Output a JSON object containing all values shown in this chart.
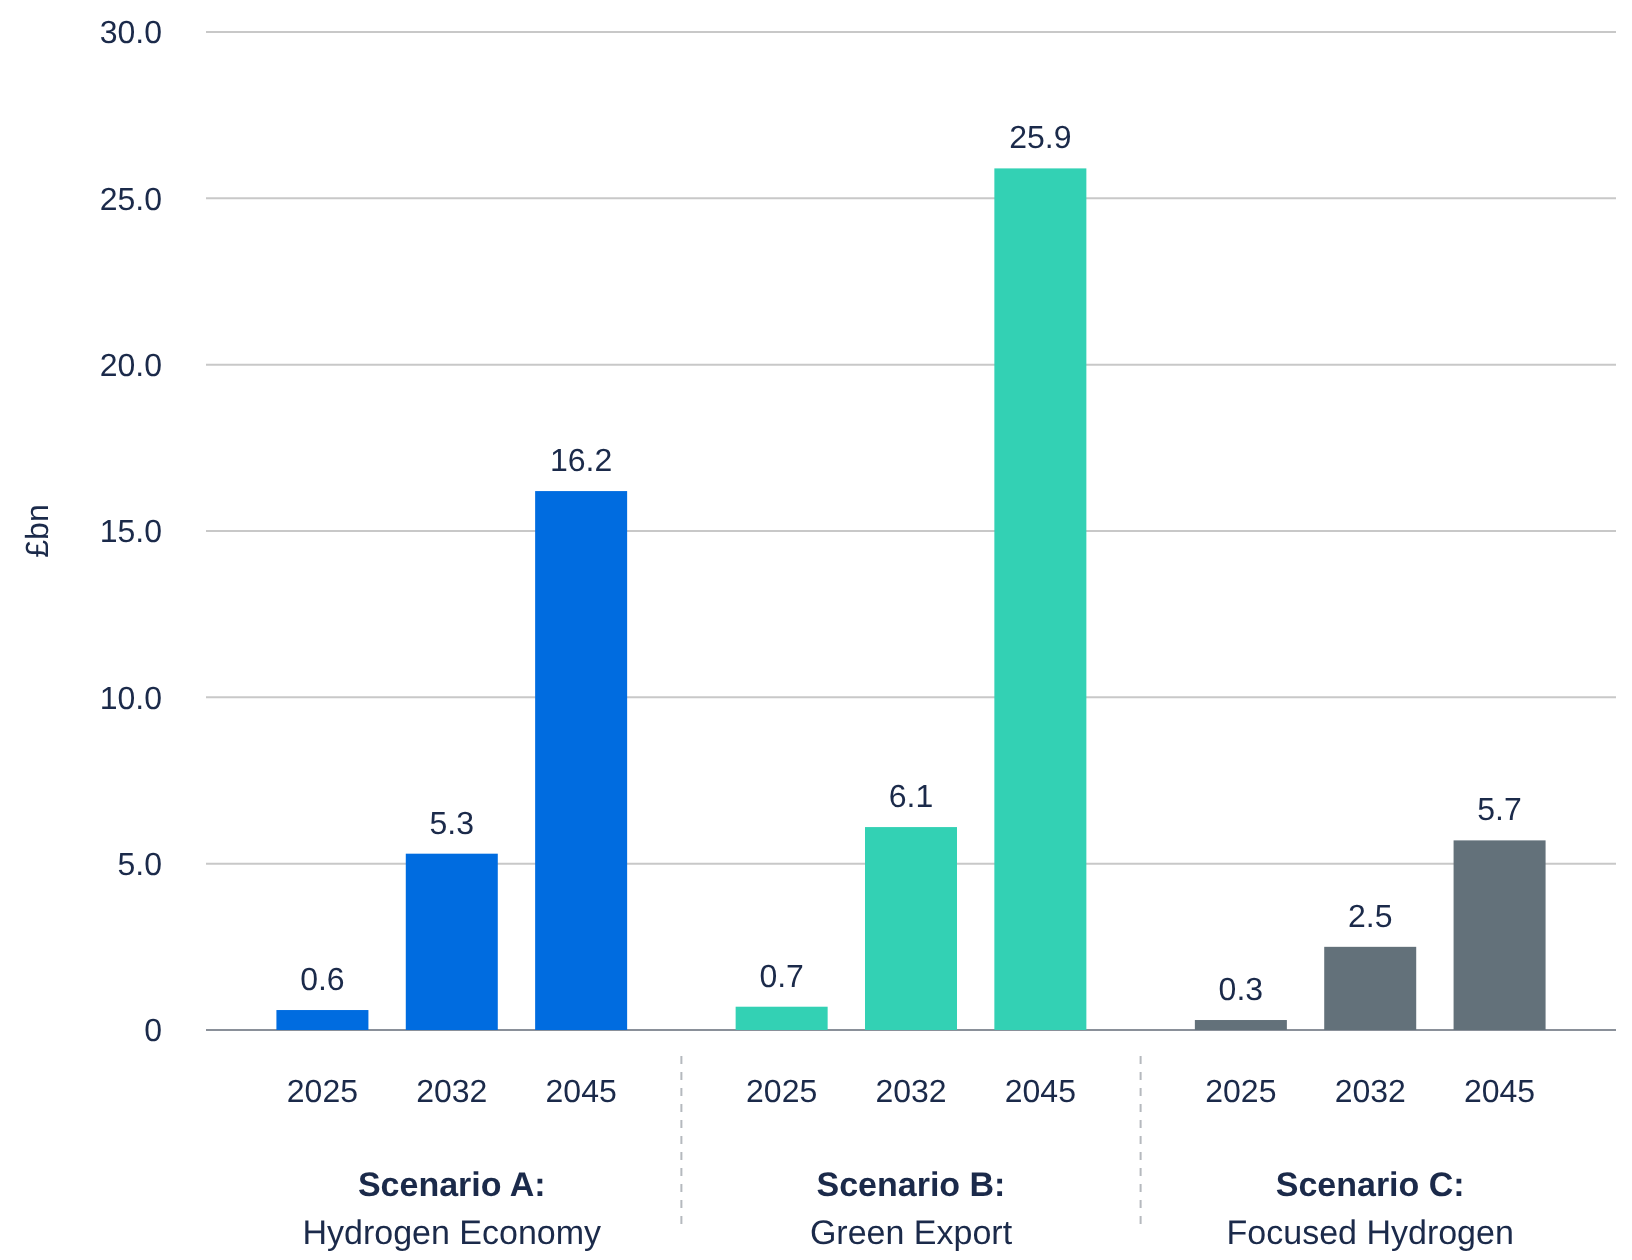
{
  "chart_data": {
    "type": "bar",
    "ylabel": "£bn",
    "categories": [
      "2025",
      "2032",
      "2045",
      "2025",
      "2032",
      "2045",
      "2025",
      "2032",
      "2045"
    ],
    "values": [
      0.6,
      5.3,
      16.2,
      0.7,
      6.1,
      25.9,
      0.3,
      2.5,
      5.7
    ],
    "colors": [
      "#006ce0",
      "#006ce0",
      "#006ce0",
      "#33d1b4",
      "#33d1b4",
      "#33d1b4",
      "#63717a",
      "#63717a",
      "#63717a"
    ],
    "data_labels": true,
    "ylim": [
      0,
      30
    ],
    "yticks": [
      0,
      {
        "value": 5,
        "label": "5.0"
      },
      {
        "value": 10,
        "label": "10.0"
      },
      {
        "value": 15,
        "label": "15.0"
      },
      {
        "value": 20,
        "label": "20.0"
      },
      {
        "value": 25,
        "label": "25.0"
      },
      {
        "value": 30,
        "label": "30.0"
      }
    ],
    "grid": "y",
    "annotations": [
      "Scenario A:",
      "Hydrogen Economy",
      "Scenario B:",
      "Green Export",
      "Scenario C:",
      "Focused Hydrogen"
    ]
  }
}
